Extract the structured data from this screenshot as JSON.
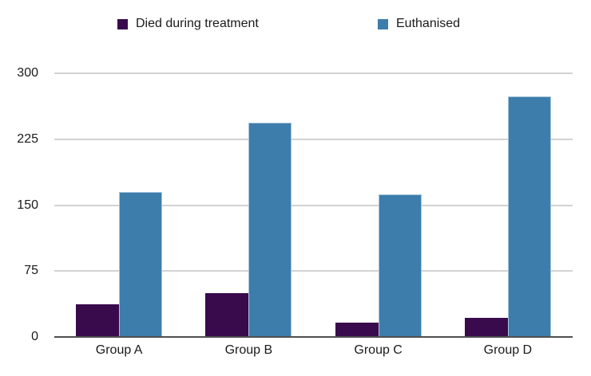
{
  "chart_data": {
    "type": "bar",
    "title": "",
    "categories": [
      "Group A",
      "Group B",
      "Group C",
      "Group D"
    ],
    "series": [
      {
        "name": "Died during treatment",
        "color": "#390b4d",
        "values": [
          37,
          50,
          16,
          22
        ]
      },
      {
        "name": "Euthanised",
        "color": "#3d7dab",
        "values": [
          165,
          244,
          162,
          274
        ]
      }
    ],
    "xlabel": "",
    "ylabel": "",
    "ylim": [
      0,
      300
    ],
    "yticks": [
      "300",
      "225",
      "150",
      "75",
      "0"
    ],
    "grid": "horizontal",
    "legend_position": "top"
  },
  "colors": {
    "background": "#ffffff",
    "gridline": "#d2d2d2",
    "baseline": "#4f4f4f",
    "text": "#1a1a1a",
    "series_died": "#390b4d",
    "series_euthanised": "#3d7dab"
  }
}
